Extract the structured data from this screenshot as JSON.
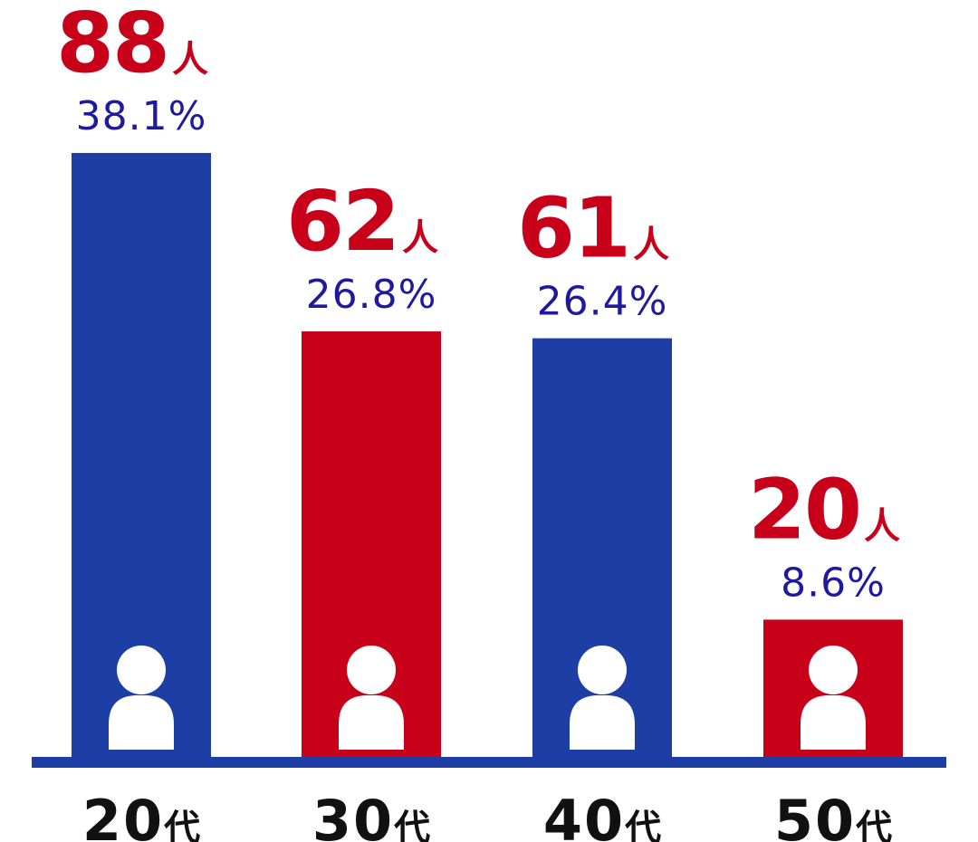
{
  "chart_data": {
    "type": "bar",
    "categories": [
      "20代",
      "30代",
      "40代",
      "50代"
    ],
    "category_numbers": [
      "20",
      "30",
      "40",
      "50"
    ],
    "category_suffix": "代",
    "values": [
      88,
      62,
      61,
      20
    ],
    "value_labels": [
      "88",
      "62",
      "61",
      "20"
    ],
    "value_unit": "人",
    "percent_labels": [
      "38.1%",
      "26.8%",
      "26.4%",
      "8.6%"
    ],
    "bar_colors": [
      "#1d3fa5",
      "#c8001a",
      "#1d3fa5",
      "#c8001a"
    ],
    "icon": "person-icon",
    "colors": {
      "blue": "#1d3fa5",
      "red": "#c8001a",
      "percent_text": "#1d1aa0",
      "count_text": "#c8001a"
    }
  }
}
